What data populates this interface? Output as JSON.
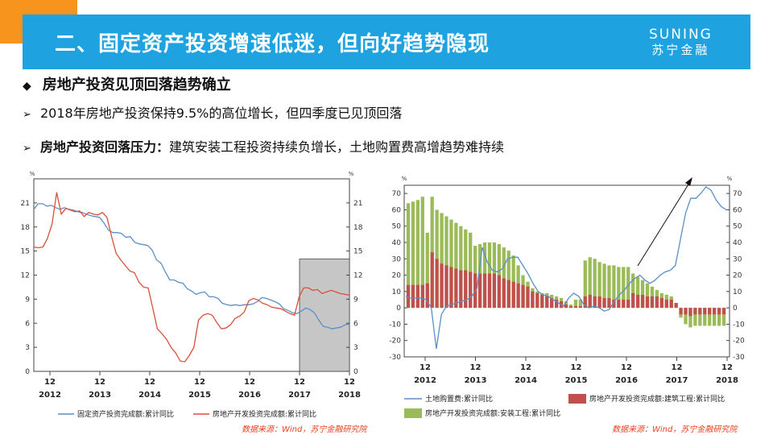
{
  "header": {
    "title": "二、固定资产投资增速低迷，但向好趋势隐现",
    "logo_en": "SUNING",
    "logo_cn": "苏宁金融"
  },
  "section_heading": "房地产投资见顶回落趋势确立",
  "bullets": [
    {
      "text": "2018年房地产投资保持9.5%的高位增长，但四季度已见顶回落"
    },
    {
      "bold": "房地产投资回落压力：",
      "text": "建筑安装工程投资持续负增长，土地购置费高增趋势难持续"
    }
  ],
  "colors": {
    "accent_blue": "#1fa3e0",
    "orange": "#f7941d",
    "line_blue": "#5b8fc7",
    "line_red": "#d9503a",
    "bar_red": "#c0504d",
    "bar_green": "#9bbb59",
    "source_red": "#e8411d"
  },
  "source_left": "数据来源：Wind，苏宁金融研究院",
  "source_right": "数据来源：Wind，苏宁金融研究院",
  "chart_data": [
    {
      "type": "line",
      "unit": "%",
      "x_ticks": [
        {
          "month": "12",
          "year": "2012"
        },
        {
          "month": "12",
          "year": "2013"
        },
        {
          "month": "12",
          "year": "2014"
        },
        {
          "month": "12",
          "year": "2015"
        },
        {
          "month": "12",
          "year": "2016"
        },
        {
          "month": "12",
          "year": "2017"
        },
        {
          "month": "12",
          "year": "2018"
        }
      ],
      "ylim": [
        0,
        24
      ],
      "yticks": [
        0,
        3,
        6,
        9,
        12,
        15,
        18,
        21
      ],
      "shaded_region": "2018",
      "series": [
        {
          "name": "固定资产投资完成额:累计同比",
          "color": "#5b8fc7",
          "values": [
            20.2,
            20.9,
            20.9,
            20.6,
            20.7,
            20.4,
            20.2,
            20.4,
            20.2,
            20.1,
            19.9,
            19.8,
            19.6,
            19.4,
            19.3,
            19.2,
            18.5,
            17.6,
            17.3,
            17.3,
            17.2,
            16.7,
            16.8,
            16.1,
            15.9,
            15.8,
            15.7,
            15.1,
            13.9,
            13.5,
            12.4,
            11.4,
            11.4,
            11.1,
            11.0,
            10.3,
            10.0,
            9.6,
            9.8,
            9.9,
            9.3,
            9.3,
            9.1,
            8.5,
            8.3,
            8.2,
            8.3,
            8.2,
            8.3,
            8.3,
            8.4,
            8.7,
            9.2,
            9.1,
            8.9,
            8.7,
            8.4,
            7.8,
            7.6,
            7.3,
            7.2,
            7.5,
            7.9,
            7.7,
            7.3,
            6.4,
            5.6,
            5.5,
            5.3,
            5.4,
            5.5,
            5.8,
            5.9
          ]
        },
        {
          "name": "房地产开发投资完成额:累计同比",
          "color": "#d9503a",
          "values": [
            15.5,
            15.4,
            15.5,
            16.6,
            18.4,
            22.3,
            19.6,
            20.3,
            20.1,
            19.9,
            20.0,
            19.3,
            19.8,
            19.6,
            19.5,
            19.8,
            19.2,
            16.8,
            14.7,
            13.9,
            13.2,
            12.5,
            12.3,
            11.1,
            10.5,
            10.4,
            7.9,
            5.3,
            4.7,
            4.0,
            3.0,
            2.3,
            1.3,
            1.2,
            2.0,
            3.0,
            6.4,
            7.0,
            7.2,
            7.0,
            6.1,
            5.3,
            5.4,
            5.8,
            6.6,
            6.9,
            7.4,
            8.8,
            9.1,
            8.9,
            8.5,
            8.3,
            8.0,
            7.9,
            7.8,
            7.5,
            7.2,
            7.0,
            9.3,
            10.4,
            10.4,
            10.1,
            10.2,
            9.7,
            9.9,
            10.1,
            9.9,
            9.7,
            9.6,
            9.5
          ]
        }
      ]
    },
    {
      "type": "bar",
      "unit": "%",
      "x_ticks": [
        {
          "month": "12",
          "year": "2012"
        },
        {
          "month": "12",
          "year": "2013"
        },
        {
          "month": "12",
          "year": "2014"
        },
        {
          "month": "12",
          "year": "2015"
        },
        {
          "month": "12",
          "year": "2016"
        },
        {
          "month": "12",
          "year": "2017"
        },
        {
          "month": "12",
          "year": "2018"
        }
      ],
      "ylim": [
        -30,
        75
      ],
      "yticks": [
        -30,
        -20,
        -10,
        0,
        10,
        20,
        30,
        40,
        50,
        60,
        70
      ],
      "series": [
        {
          "name": "房地产开发投资完成额:建筑工程:累计同比",
          "kind": "bar",
          "color": "#c0504d",
          "values": [
            14,
            14,
            14,
            14,
            15,
            34,
            30,
            27,
            26,
            25,
            24,
            23,
            23,
            22,
            21,
            21,
            21,
            21,
            21,
            20,
            18,
            17,
            16,
            15,
            14,
            13,
            10,
            9,
            8,
            7,
            6,
            5,
            4,
            2,
            1,
            1,
            1,
            7,
            8,
            7,
            7,
            6,
            6,
            5,
            5,
            5,
            5,
            9,
            8,
            8,
            7,
            7,
            7,
            6,
            5,
            5,
            3,
            -4,
            -4,
            -5,
            -4,
            -4,
            -4,
            -4,
            -4,
            -4,
            -4
          ]
        },
        {
          "name": "房地产开发投资完成额:安装工程:累计同比",
          "kind": "bar",
          "color": "#9bbb59",
          "values": [
            64,
            65,
            66,
            68,
            46,
            68,
            60,
            58,
            56,
            54,
            52,
            50,
            48,
            46,
            38,
            39,
            40,
            40,
            40,
            39,
            37,
            35,
            32,
            26,
            20,
            16,
            12,
            10,
            9,
            9,
            8,
            7,
            6,
            4,
            2,
            5,
            5,
            29,
            31,
            30,
            28,
            27,
            26,
            26,
            25,
            25,
            25,
            21,
            19,
            17,
            15,
            13,
            11,
            9,
            8,
            7,
            3,
            -6,
            -10,
            -12,
            -11,
            -11,
            -11,
            -11,
            -11,
            -11,
            -11
          ]
        },
        {
          "name": "土地购置费:累计同比",
          "kind": "line",
          "color": "#5b8fc7",
          "values": [
            7,
            6,
            6,
            6,
            5,
            0,
            -25,
            -4,
            1,
            2,
            3,
            4,
            5,
            7,
            12,
            37,
            28,
            23,
            22,
            24,
            30,
            31,
            31,
            26,
            21,
            15,
            10,
            8,
            7,
            5,
            3,
            1,
            6,
            9,
            7,
            2,
            0,
            1,
            0,
            -2,
            -1,
            4,
            8,
            11,
            15,
            18,
            20,
            17,
            15,
            17,
            20,
            22,
            23,
            26,
            42,
            58,
            67,
            67,
            70,
            74,
            72,
            66,
            62,
            60
          ]
        }
      ],
      "annotation": "arrow pointing upward-right"
    }
  ]
}
